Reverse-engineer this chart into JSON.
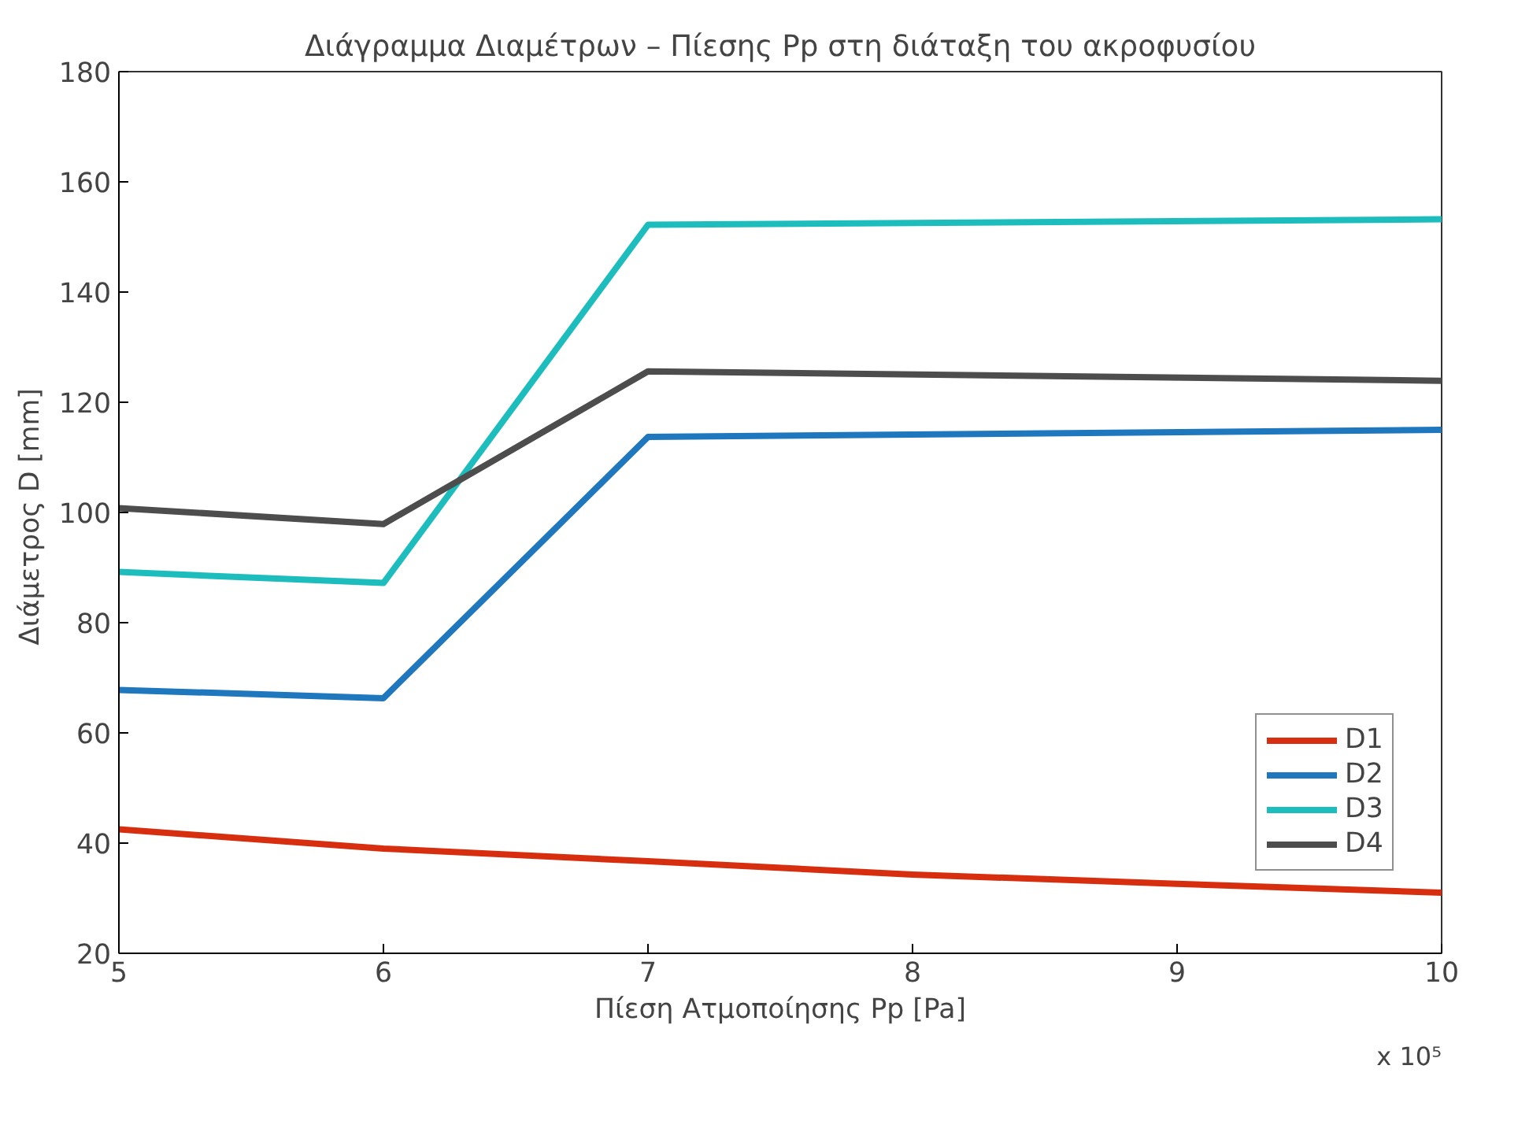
{
  "chart_data": {
    "type": "line",
    "title": "Διάγραμμα Διαμέτρων – Πίεσης Pp στη διάταξη του ακροφυσίου",
    "xlabel": "Πίεση Ατμοποίησης Pp [Pa]",
    "ylabel": "Διάμετρος  D [mm]",
    "annotations": [
      "x 10⁵"
    ],
    "xlim": [
      5,
      10
    ],
    "xticks": [
      5,
      6,
      7,
      8,
      9,
      10
    ],
    "ylim": [
      20,
      180
    ],
    "yticks": [
      20,
      40,
      60,
      80,
      100,
      120,
      140,
      160,
      180
    ],
    "grid": false,
    "legend": "bottom right",
    "line_style": "solid",
    "marker": "none",
    "series": [
      {
        "name": "D1",
        "color": "#d62e0e",
        "x": [
          5,
          6,
          7,
          8,
          9,
          10
        ],
        "values": [
          42.5,
          39,
          36.7,
          34.3,
          32.6,
          31
        ]
      },
      {
        "name": "D2",
        "color": "#1f77bd",
        "x": [
          5,
          6,
          7,
          10
        ],
        "values": [
          67.8,
          66.3,
          113.7,
          115
        ]
      },
      {
        "name": "D3",
        "color": "#1ebdbd",
        "x": [
          5,
          6,
          7,
          10
        ],
        "values": [
          89.2,
          87.2,
          152.2,
          153.2
        ]
      },
      {
        "name": "D4",
        "color": "#4d4d4d",
        "x": [
          5,
          6,
          7,
          10
        ],
        "values": [
          100.8,
          97.9,
          125.6,
          123.9
        ]
      }
    ]
  }
}
